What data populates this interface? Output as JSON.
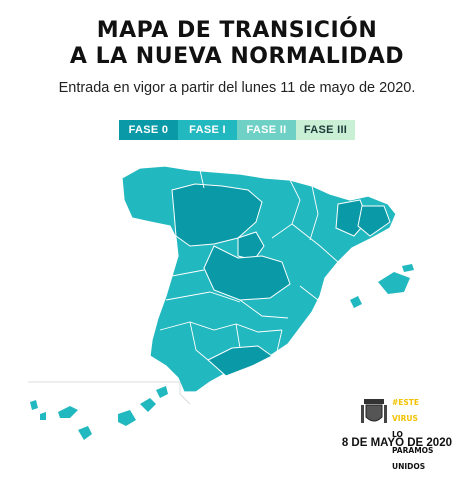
{
  "title_line1": "MAPA DE TRANSICIÓN",
  "title_line2": "A LA NUEVA NORMALIDAD",
  "subtitle": "Entrada en vigor a partir del lunes 11 de mayo de 2020.",
  "legend": [
    {
      "label": "FASE 0",
      "color": "#0a9aa7",
      "text_color": "#ffffff"
    },
    {
      "label": "FASE I",
      "color": "#22b8bf",
      "text_color": "#ffffff"
    },
    {
      "label": "FASE II",
      "color": "#6fd1c6",
      "text_color": "#ffffff"
    },
    {
      "label": "FASE III",
      "color": "#c9efd4",
      "text_color": "#1c3a3a"
    }
  ],
  "campaign": {
    "line1": "#ESTE",
    "line2": "VIRUS",
    "line3": "LO",
    "line4": "PARAMOS",
    "line5": "UNIDOS"
  },
  "date": "8 DE MAYO DE 2020",
  "colors": {
    "fase0": "#0a9aa7",
    "fase1": "#22b8bf",
    "border": "#ffffff",
    "inset_line": "#d8dde0"
  }
}
